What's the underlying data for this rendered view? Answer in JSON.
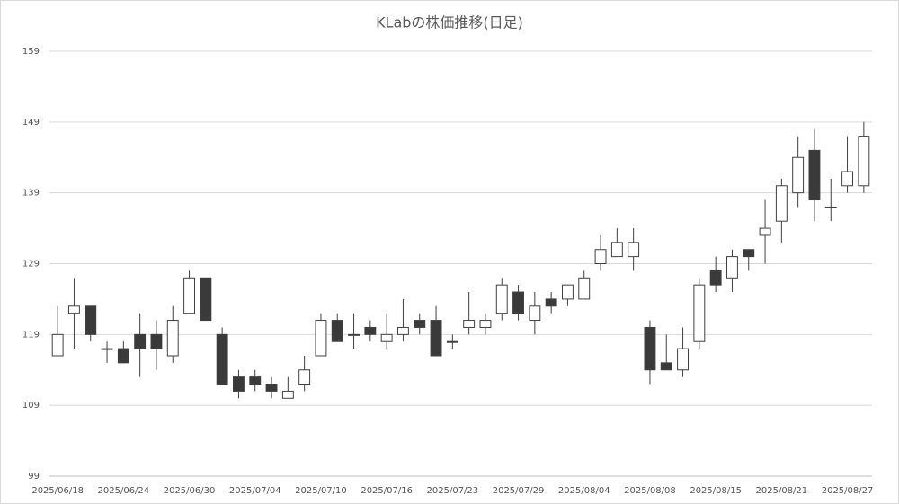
{
  "chart_data": {
    "type": "candlestick",
    "title": "KLabの株価推移(日足)",
    "categories": [
      "2025/06/18",
      null,
      null,
      null,
      "2025/06/24",
      null,
      null,
      null,
      "2025/06/30",
      null,
      null,
      null,
      "2025/07/04",
      null,
      null,
      null,
      "2025/07/10",
      null,
      null,
      null,
      "2025/07/16",
      null,
      null,
      null,
      "2025/07/23",
      null,
      null,
      null,
      "2025/07/29",
      null,
      null,
      null,
      "2025/08/04",
      null,
      null,
      null,
      "2025/08/08",
      null,
      null,
      null,
      "2025/08/15",
      null,
      null,
      null,
      "2025/08/21",
      null,
      null,
      null,
      "2025/08/27",
      null
    ],
    "open": [
      116,
      122,
      123,
      117,
      117,
      119,
      119,
      116,
      122,
      127,
      119,
      113,
      113,
      112,
      110,
      112,
      116,
      121,
      119,
      120,
      118,
      119,
      121,
      121,
      118,
      120,
      120,
      122,
      125,
      121,
      124,
      124,
      124,
      129,
      130,
      130,
      120,
      115,
      114,
      118,
      128,
      127,
      131,
      133,
      135,
      139,
      145,
      137,
      140,
      140
    ],
    "high": [
      123,
      127,
      123,
      118,
      118,
      122,
      121,
      123,
      128,
      127,
      120,
      114,
      114,
      113,
      113,
      116,
      122,
      122,
      122,
      121,
      122,
      124,
      122,
      123,
      119,
      125,
      122,
      127,
      126,
      125,
      125,
      126,
      128,
      133,
      134,
      134,
      121,
      119,
      120,
      127,
      130,
      131,
      131,
      138,
      141,
      147,
      148,
      141,
      147,
      149
    ],
    "low": [
      116,
      117,
      118,
      115,
      115,
      113,
      114,
      115,
      122,
      121,
      112,
      110,
      111,
      110,
      110,
      111,
      116,
      118,
      117,
      118,
      117,
      118,
      119,
      116,
      117,
      119,
      119,
      121,
      121,
      119,
      122,
      123,
      124,
      128,
      130,
      128,
      112,
      114,
      113,
      117,
      125,
      125,
      128,
      129,
      132,
      137,
      135,
      135,
      139,
      139
    ],
    "close": [
      119,
      123,
      119,
      117,
      115,
      117,
      117,
      121,
      127,
      121,
      112,
      111,
      112,
      111,
      111,
      114,
      121,
      118,
      119,
      119,
      119,
      120,
      120,
      116,
      118,
      121,
      121,
      126,
      122,
      123,
      123,
      126,
      127,
      131,
      132,
      132,
      114,
      114,
      117,
      126,
      126,
      130,
      130,
      134,
      140,
      144,
      138,
      137,
      142,
      147
    ],
    "up_color": "#ffffff",
    "down_color": "#3a3a3a",
    "edge_color": "#404040",
    "ylim": [
      99,
      159
    ],
    "yticks": [
      99,
      109,
      119,
      129,
      139,
      149,
      159
    ],
    "grid": true
  }
}
